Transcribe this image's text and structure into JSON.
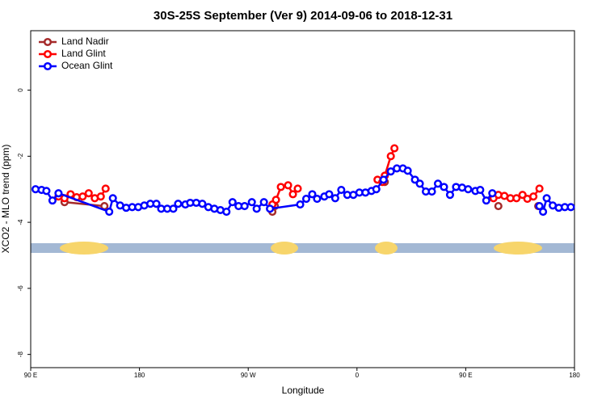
{
  "chart_data": {
    "type": "line",
    "title": "30S-25S September (Ver 9)   2014-09-06 to 2018-12-31",
    "x_label": "Longitude",
    "y_label": "XCO2 - MLO trend (ppm)",
    "xlim": [
      90,
      540
    ],
    "xticks": [
      {
        "value": 90,
        "label": "90 E"
      },
      180,
      {
        "value": 270,
        "label": "90 W"
      },
      {
        "value": 360,
        "label": "0"
      },
      {
        "value": 450,
        "label": "90 E"
      },
      {
        "value": 540,
        "label": "180"
      }
    ],
    "ylim": [
      -8.4,
      1.8
    ],
    "yticks": [
      0,
      -2,
      -4,
      -6,
      -8
    ],
    "legend": "top-left",
    "series": [
      {
        "name": "Land Nadir",
        "color": "#a52a2a",
        "x": [
          118,
          151,
          null,
          290,
          292,
          null,
          383,
          null,
          477,
          null,
          510
        ],
        "values": [
          -3.39,
          -3.51,
          null,
          -3.68,
          -3.51,
          null,
          -2.78,
          null,
          -3.51,
          null,
          -3.51
        ]
      },
      {
        "name": "Land Glint",
        "color": "#ff0000",
        "x": [
          113,
          118,
          123,
          128,
          133,
          138,
          143,
          148,
          152,
          null,
          290,
          293,
          297,
          303,
          307,
          311,
          null,
          377,
          381,
          383,
          388,
          391,
          null,
          473,
          477,
          482,
          487,
          492,
          497,
          501,
          506,
          511
        ],
        "values": [
          -3.22,
          -3.27,
          -3.15,
          -3.24,
          -3.22,
          -3.12,
          -3.27,
          -3.22,
          -2.98,
          null,
          -3.46,
          -3.32,
          -2.93,
          -2.88,
          -3.15,
          -2.98,
          null,
          -2.71,
          -2.78,
          -2.59,
          -2.0,
          -1.76,
          null,
          -3.27,
          -3.17,
          -3.2,
          -3.27,
          -3.27,
          -3.17,
          -3.29,
          -3.22,
          -2.98
        ]
      },
      {
        "name": "Ocean Glint",
        "color": "#0000ff",
        "x": [
          94,
          99,
          103,
          108,
          113,
          155,
          158,
          164,
          169,
          174,
          179,
          184,
          189,
          194,
          198,
          203,
          208,
          212,
          218,
          222,
          227,
          232,
          237,
          242,
          247,
          252,
          257,
          262,
          267,
          273,
          277,
          283,
          288,
          313,
          318,
          323,
          327,
          333,
          337,
          342,
          347,
          352,
          357,
          362,
          367,
          372,
          376,
          382,
          388,
          393,
          398,
          402,
          408,
          412,
          417,
          422,
          427,
          432,
          437,
          442,
          447,
          452,
          458,
          462,
          467,
          472,
          null,
          511,
          514,
          517,
          522,
          527,
          532,
          537
        ],
        "values": [
          -3.0,
          -3.02,
          -3.05,
          -3.34,
          -3.12,
          -3.68,
          -3.27,
          -3.49,
          -3.56,
          -3.54,
          -3.54,
          -3.49,
          -3.44,
          -3.44,
          -3.59,
          -3.59,
          -3.59,
          -3.44,
          -3.46,
          -3.41,
          -3.41,
          -3.44,
          -3.54,
          -3.59,
          -3.63,
          -3.68,
          -3.39,
          -3.51,
          -3.51,
          -3.39,
          -3.59,
          -3.39,
          -3.59,
          -3.46,
          -3.29,
          -3.15,
          -3.29,
          -3.22,
          -3.15,
          -3.27,
          -3.02,
          -3.17,
          -3.17,
          -3.1,
          -3.1,
          -3.05,
          -3.0,
          -2.71,
          -2.46,
          -2.37,
          -2.37,
          -2.44,
          -2.71,
          -2.83,
          -3.07,
          -3.07,
          -2.83,
          -2.93,
          -3.17,
          -2.93,
          -2.95,
          -3.0,
          -3.05,
          -3.02,
          -3.34,
          -3.12,
          null,
          -3.51,
          -3.68,
          -3.27,
          -3.49,
          -3.56,
          -3.54,
          -3.54
        ]
      }
    ]
  }
}
